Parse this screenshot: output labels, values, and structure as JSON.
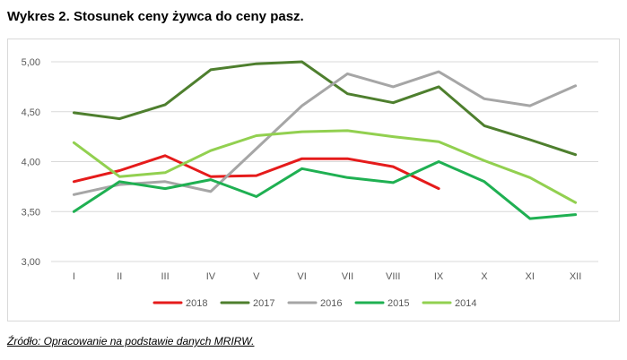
{
  "header": {
    "title": "Wykres 2. Stosunek ceny żywca do ceny pasz."
  },
  "footer": {
    "source": "Źródło: Opracowanie na podstawie danych MRIRW."
  },
  "chart_data": {
    "type": "line",
    "title": "",
    "xlabel": "",
    "ylabel": "",
    "categories": [
      "I",
      "II",
      "III",
      "IV",
      "V",
      "VI",
      "VII",
      "VIII",
      "IX",
      "X",
      "XI",
      "XII"
    ],
    "ylim": [
      3.0,
      5.2
    ],
    "yticks": [
      "3,00",
      "3,50",
      "4,00",
      "4,50",
      "5,00"
    ],
    "ytick_values": [
      3.0,
      3.5,
      4.0,
      4.5,
      5.0
    ],
    "grid": true,
    "legend": "bottom",
    "series": [
      {
        "name": "2018",
        "color": "#e51b1b",
        "values": [
          3.8,
          3.91,
          4.06,
          3.85,
          3.86,
          4.03,
          4.03,
          3.95,
          3.73,
          null,
          null,
          null
        ]
      },
      {
        "name": "2017",
        "color": "#4e7f2e",
        "values": [
          4.49,
          4.43,
          4.57,
          4.92,
          4.98,
          5.0,
          4.68,
          4.59,
          4.75,
          4.36,
          4.22,
          4.07
        ]
      },
      {
        "name": "2016",
        "color": "#a6a6a6",
        "values": [
          3.67,
          3.77,
          3.8,
          3.7,
          4.13,
          4.56,
          4.88,
          4.75,
          4.9,
          4.63,
          4.56,
          4.76
        ]
      },
      {
        "name": "2015",
        "color": "#1fb052",
        "values": [
          3.5,
          3.8,
          3.73,
          3.82,
          3.65,
          3.93,
          3.84,
          3.79,
          4.0,
          3.8,
          3.43,
          3.47
        ]
      },
      {
        "name": "2014",
        "color": "#92d050",
        "values": [
          4.19,
          3.85,
          3.89,
          4.11,
          4.26,
          4.3,
          4.31,
          4.25,
          4.2,
          4.01,
          3.84,
          3.59
        ]
      }
    ]
  }
}
